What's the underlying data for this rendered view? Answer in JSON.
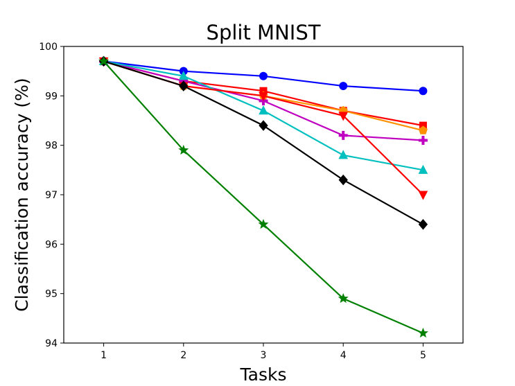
{
  "chart_data": {
    "type": "line",
    "title": "Split MNIST",
    "xlabel": "Tasks",
    "ylabel": "Classification accuracy (%)",
    "x": [
      1,
      2,
      3,
      4,
      5
    ],
    "xlim": [
      0.5,
      5.5
    ],
    "ylim": [
      94,
      100
    ],
    "xticks": [
      "1",
      "2",
      "3",
      "4",
      "5"
    ],
    "yticks": [
      "94",
      "95",
      "96",
      "97",
      "98",
      "99",
      "100"
    ],
    "grid": false,
    "legend": "none",
    "series": [
      {
        "color": "#0000ff",
        "marker": "circle",
        "values": [
          99.7,
          99.5,
          99.4,
          99.2,
          99.1
        ]
      },
      {
        "color": "#ff0000",
        "marker": "square",
        "values": [
          99.7,
          99.3,
          99.1,
          98.7,
          98.4
        ]
      },
      {
        "color": "#ff9100",
        "marker": "pentagon",
        "values": [
          99.7,
          99.2,
          99.0,
          98.7,
          98.3
        ]
      },
      {
        "color": "#c000c0",
        "marker": "plus",
        "values": [
          99.7,
          99.3,
          98.9,
          98.2,
          98.1
        ]
      },
      {
        "color": "#00bfbf",
        "marker": "triangle-up",
        "values": [
          99.7,
          99.4,
          98.7,
          97.8,
          97.5
        ]
      },
      {
        "color": "#ff0000",
        "marker": "triangle-down",
        "values": [
          99.7,
          99.2,
          99.0,
          98.6,
          97.0
        ]
      },
      {
        "color": "#000000",
        "marker": "diamond",
        "values": [
          99.7,
          99.2,
          98.4,
          97.3,
          96.4
        ]
      },
      {
        "color": "#008000",
        "marker": "star",
        "values": [
          99.7,
          97.9,
          96.4,
          94.9,
          94.2
        ]
      }
    ]
  }
}
